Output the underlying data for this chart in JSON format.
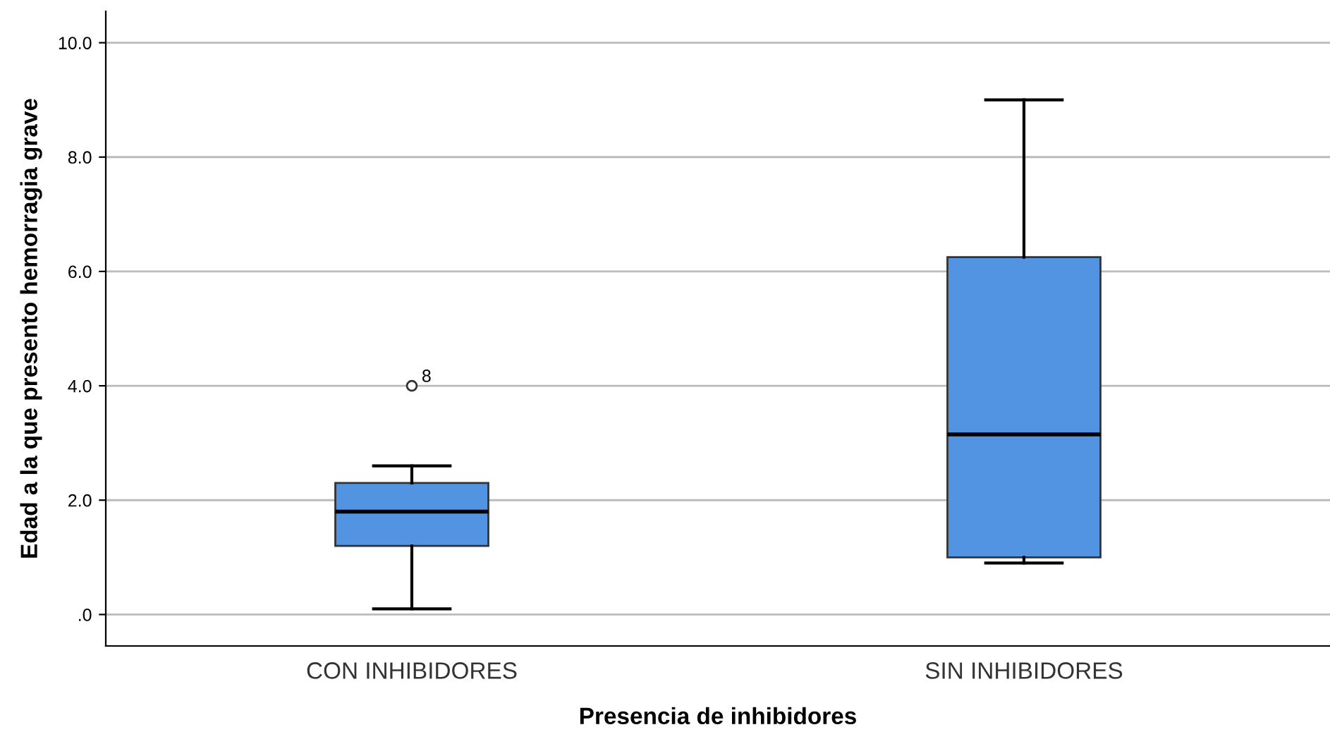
{
  "chart_data": {
    "type": "box",
    "xlabel": "Presencia de inhibidores",
    "ylabel": "Edad a la que presento hemorragia grave",
    "categories": [
      "CON INHIBIDORES",
      "SIN INHIBIDORES"
    ],
    "color": "#5294e2",
    "boxes": [
      {
        "low": 0.1,
        "q1": 1.2,
        "median": 1.8,
        "q3": 2.3,
        "high": 2.6,
        "outliers": [
          4.0
        ]
      },
      {
        "low": 0.9,
        "q1": 1.0,
        "median": 3.15,
        "q3": 6.25,
        "high": 9.0
      }
    ],
    "annotations": [
      "8"
    ],
    "ylim": [
      -0.55,
      10.55
    ],
    "yticks": [
      {
        "value": 0,
        "label": ".0"
      },
      {
        "value": 2,
        "label": "2.0"
      },
      {
        "value": 4,
        "label": "4.0"
      },
      {
        "value": 6,
        "label": "6.0"
      },
      {
        "value": 8,
        "label": "8.0"
      },
      {
        "value": 10,
        "label": "10.0"
      }
    ],
    "grid": "y"
  }
}
